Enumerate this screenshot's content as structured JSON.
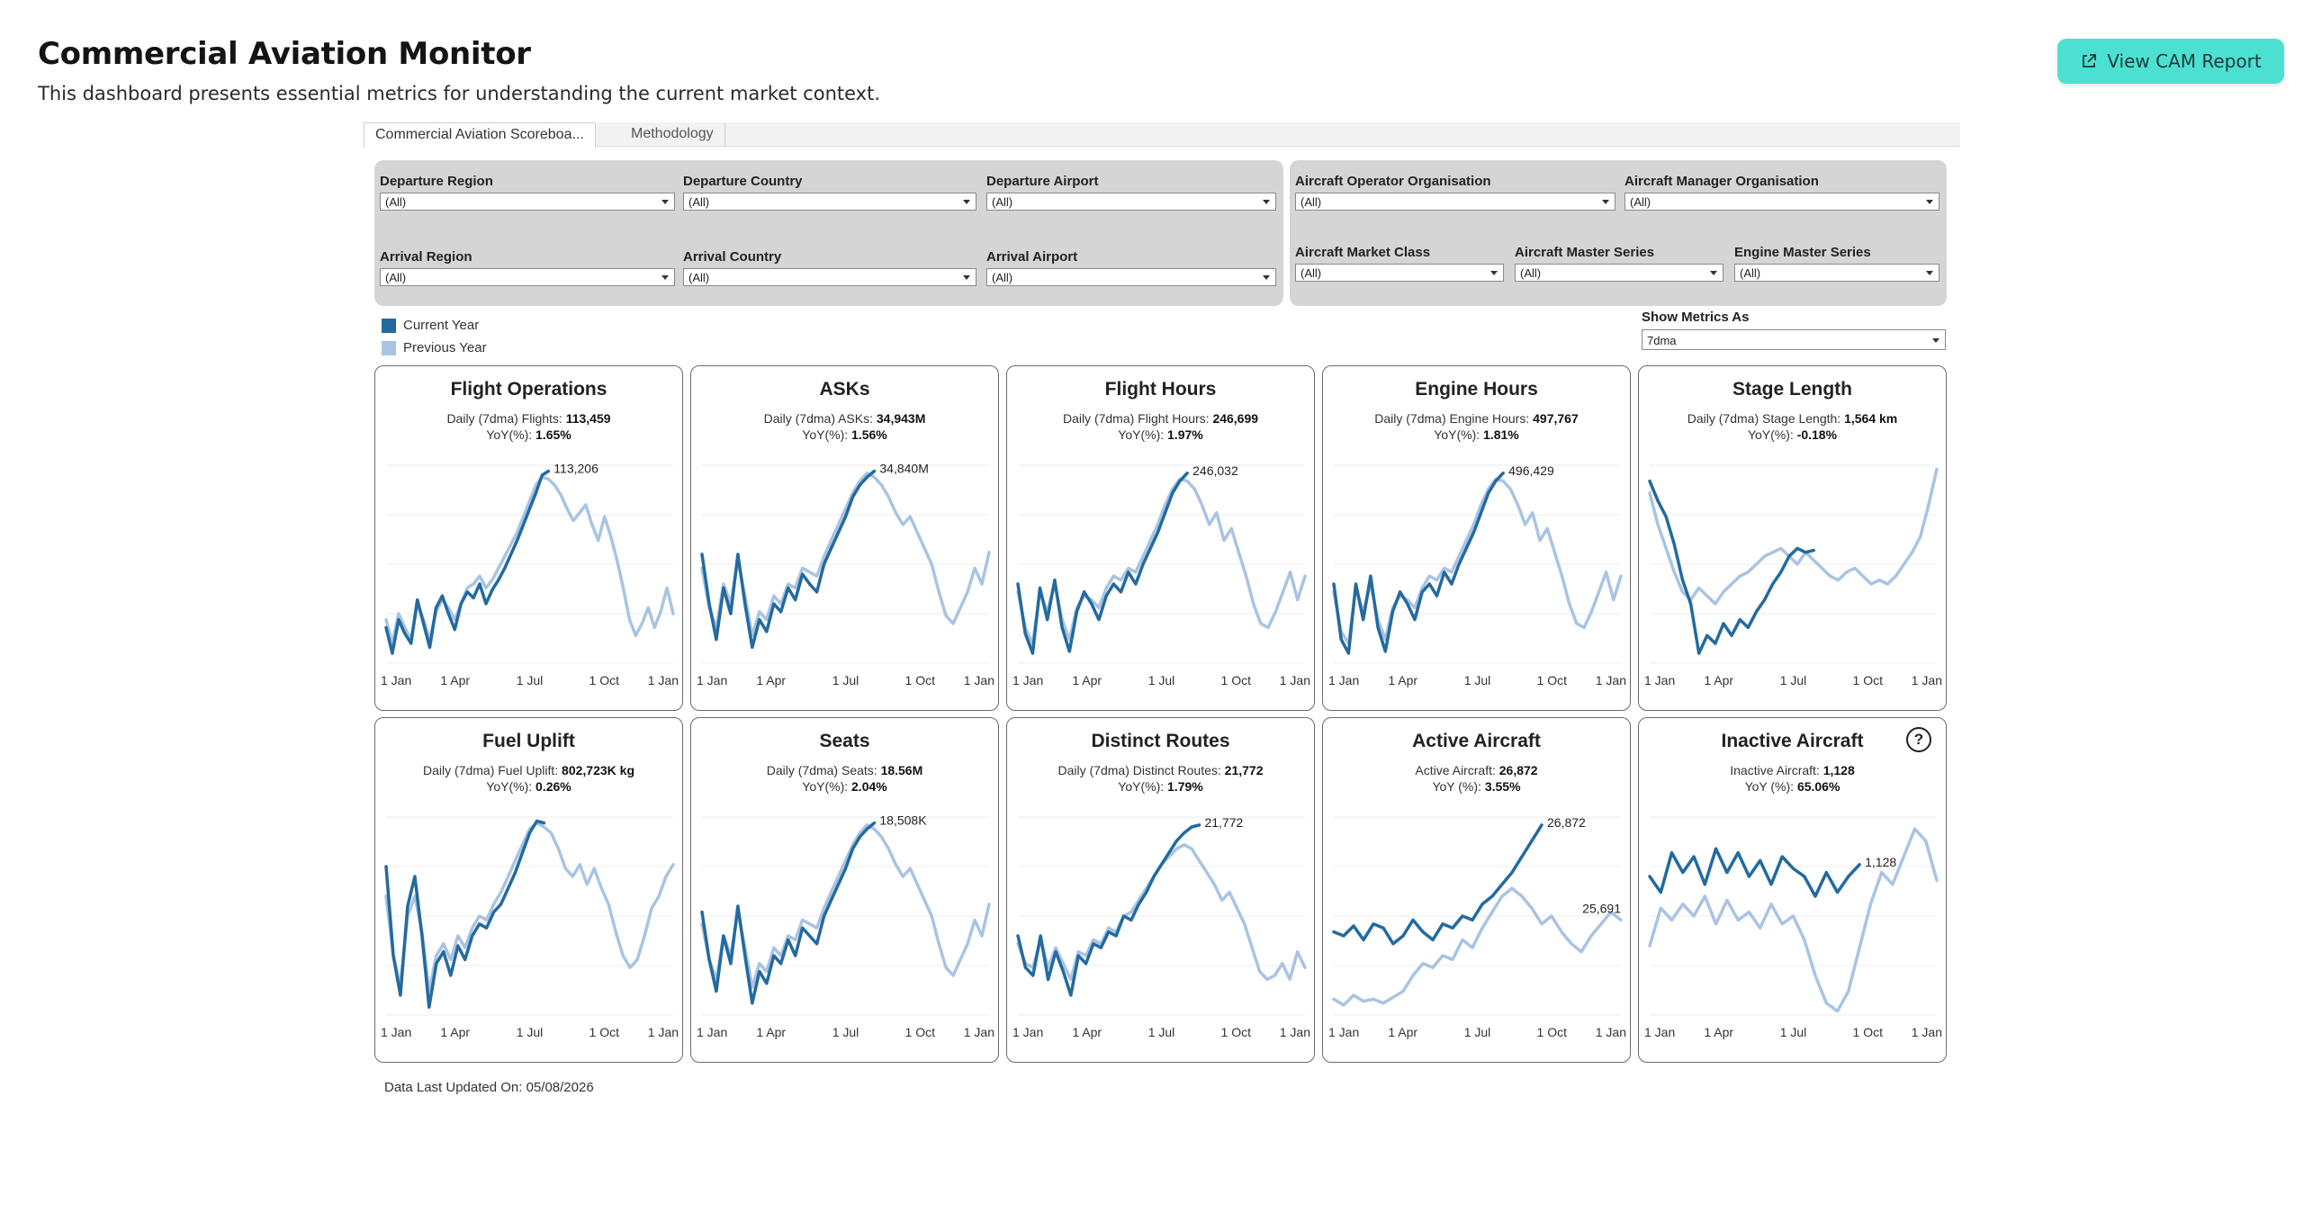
{
  "header": {
    "title": "Commercial Aviation Monitor",
    "subtitle": "This dashboard presents essential metrics for understanding the current market context.",
    "report_button": "View CAM Report"
  },
  "tabs": [
    {
      "label": "Commercial Aviation Scoreboa..."
    },
    {
      "label": "Methodology"
    }
  ],
  "filters": {
    "departure_region": {
      "label": "Departure Region",
      "value": "(All)"
    },
    "departure_country": {
      "label": "Departure Country",
      "value": "(All)"
    },
    "departure_airport": {
      "label": "Departure Airport",
      "value": "(All)"
    },
    "arrival_region": {
      "label": "Arrival Region",
      "value": "(All)"
    },
    "arrival_country": {
      "label": "Arrival Country",
      "value": "(All)"
    },
    "arrival_airport": {
      "label": "Arrival Airport",
      "value": "(All)"
    },
    "operator_org": {
      "label": "Aircraft Operator Organisation",
      "value": "(All)"
    },
    "manager_org": {
      "label": "Aircraft Manager Organisation",
      "value": "(All)"
    },
    "market_class": {
      "label": "Aircraft Market Class",
      "value": "(All)"
    },
    "master_series": {
      "label": "Aircraft Master Series",
      "value": "(All)"
    },
    "engine_series": {
      "label": "Engine Master Series",
      "value": "(All)"
    }
  },
  "legend": {
    "current": "Current Year",
    "previous": "Previous Year",
    "colors": {
      "current": "#236a9f",
      "previous": "#a9c4e2"
    }
  },
  "show_metrics": {
    "label": "Show Metrics As",
    "value": "7dma"
  },
  "cards": [
    {
      "title": "Flight Operations",
      "line1_prefix": "Daily (7dma) Flights: ",
      "line1_value": "113,459",
      "line2_prefix": "YoY(%): ",
      "line2_value": "1.65%",
      "end_label": "113,206",
      "prev_label": "",
      "current": [
        0.18,
        0.05,
        0.22,
        0.15,
        0.1,
        0.32,
        0.2,
        0.08,
        0.28,
        0.34,
        0.25,
        0.17,
        0.3,
        0.36,
        0.33,
        0.4,
        0.3,
        0.37,
        0.42,
        0.48,
        0.55,
        0.62,
        0.7,
        0.78,
        0.86,
        0.95,
        0.97
      ],
      "previous": [
        0.22,
        0.1,
        0.25,
        0.18,
        0.12,
        0.3,
        0.22,
        0.12,
        0.26,
        0.32,
        0.28,
        0.22,
        0.3,
        0.38,
        0.4,
        0.44,
        0.38,
        0.42,
        0.48,
        0.54,
        0.6,
        0.66,
        0.74,
        0.82,
        0.9,
        0.94,
        0.93,
        0.9,
        0.85,
        0.78,
        0.72,
        0.76,
        0.8,
        0.7,
        0.62,
        0.74,
        0.64,
        0.52,
        0.38,
        0.22,
        0.14,
        0.2,
        0.28,
        0.18,
        0.26,
        0.38,
        0.25
      ],
      "x_ticks": [
        "1 Jan",
        "1 Apr",
        "1 Jul",
        "1 Oct",
        "1 Jan"
      ]
    },
    {
      "title": "ASKs",
      "line1_prefix": "Daily (7dma) ASKs: ",
      "line1_value": "34,943M",
      "line2_prefix": "YoY(%): ",
      "line2_value": "1.56%",
      "end_label": "34,840M",
      "prev_label": "",
      "current": [
        0.55,
        0.3,
        0.12,
        0.38,
        0.25,
        0.55,
        0.3,
        0.08,
        0.22,
        0.16,
        0.3,
        0.26,
        0.38,
        0.32,
        0.45,
        0.4,
        0.36,
        0.5,
        0.58,
        0.66,
        0.74,
        0.84,
        0.9,
        0.94,
        0.97
      ],
      "previous": [
        0.48,
        0.28,
        0.18,
        0.4,
        0.3,
        0.52,
        0.34,
        0.14,
        0.26,
        0.22,
        0.34,
        0.3,
        0.4,
        0.38,
        0.48,
        0.46,
        0.44,
        0.54,
        0.62,
        0.7,
        0.78,
        0.86,
        0.92,
        0.96,
        0.94,
        0.9,
        0.84,
        0.76,
        0.7,
        0.74,
        0.66,
        0.58,
        0.5,
        0.36,
        0.24,
        0.2,
        0.28,
        0.36,
        0.48,
        0.4,
        0.56
      ],
      "x_ticks": [
        "1 Jan",
        "1 Apr",
        "1 Jul",
        "1 Oct",
        "1 Jan"
      ]
    },
    {
      "title": "Flight Hours",
      "line1_prefix": "Daily (7dma) Flight Hours: ",
      "line1_value": "246,699",
      "line2_prefix": "YoY(%): ",
      "line2_value": "1.97%",
      "end_label": "246,032",
      "prev_label": "",
      "current": [
        0.4,
        0.15,
        0.05,
        0.38,
        0.22,
        0.42,
        0.18,
        0.06,
        0.26,
        0.36,
        0.3,
        0.22,
        0.34,
        0.4,
        0.36,
        0.46,
        0.4,
        0.5,
        0.58,
        0.66,
        0.76,
        0.86,
        0.92,
        0.96
      ],
      "previous": [
        0.36,
        0.18,
        0.1,
        0.36,
        0.26,
        0.4,
        0.22,
        0.12,
        0.28,
        0.34,
        0.32,
        0.28,
        0.38,
        0.44,
        0.42,
        0.48,
        0.46,
        0.54,
        0.62,
        0.7,
        0.8,
        0.88,
        0.93,
        0.92,
        0.88,
        0.8,
        0.7,
        0.76,
        0.62,
        0.68,
        0.56,
        0.44,
        0.3,
        0.2,
        0.18,
        0.26,
        0.36,
        0.46,
        0.32,
        0.44
      ],
      "x_ticks": [
        "1 Jan",
        "1 Apr",
        "1 Jul",
        "1 Oct",
        "1 Jan"
      ]
    },
    {
      "title": "Engine Hours",
      "line1_prefix": "Daily (7dma) Engine Hours: ",
      "line1_value": "497,767",
      "line2_prefix": "YoY(%): ",
      "line2_value": "1.81%",
      "end_label": "496,429",
      "prev_label": "",
      "current": [
        0.4,
        0.12,
        0.05,
        0.4,
        0.22,
        0.44,
        0.18,
        0.06,
        0.26,
        0.36,
        0.3,
        0.22,
        0.36,
        0.4,
        0.34,
        0.46,
        0.4,
        0.5,
        0.58,
        0.66,
        0.76,
        0.86,
        0.92,
        0.96
      ],
      "previous": [
        0.36,
        0.16,
        0.1,
        0.38,
        0.26,
        0.4,
        0.22,
        0.12,
        0.28,
        0.34,
        0.32,
        0.28,
        0.38,
        0.44,
        0.42,
        0.48,
        0.46,
        0.54,
        0.62,
        0.7,
        0.8,
        0.88,
        0.93,
        0.92,
        0.88,
        0.8,
        0.7,
        0.76,
        0.62,
        0.68,
        0.56,
        0.44,
        0.3,
        0.2,
        0.18,
        0.26,
        0.36,
        0.46,
        0.32,
        0.44
      ],
      "x_ticks": [
        "1 Jan",
        "1 Apr",
        "1 Jul",
        "1 Oct",
        "1 Jan"
      ]
    },
    {
      "title": "Stage Length",
      "line1_prefix": "Daily (7dma) Stage Length: ",
      "line1_value": "1,564 km",
      "line2_prefix": "YoY(%): ",
      "line2_value": "-0.18%",
      "end_label": "",
      "prev_label": "",
      "current": [
        0.92,
        0.82,
        0.74,
        0.6,
        0.42,
        0.3,
        0.05,
        0.14,
        0.1,
        0.2,
        0.14,
        0.22,
        0.18,
        0.26,
        0.32,
        0.4,
        0.46,
        0.54,
        0.58,
        0.56,
        0.57
      ],
      "previous": [
        0.86,
        0.7,
        0.58,
        0.46,
        0.36,
        0.32,
        0.38,
        0.34,
        0.3,
        0.36,
        0.4,
        0.44,
        0.46,
        0.5,
        0.54,
        0.56,
        0.58,
        0.54,
        0.5,
        0.56,
        0.52,
        0.48,
        0.44,
        0.42,
        0.46,
        0.48,
        0.44,
        0.4,
        0.42,
        0.4,
        0.44,
        0.5,
        0.56,
        0.64,
        0.8,
        0.98
      ],
      "x_ticks": [
        "1 Jan",
        "1 Apr",
        "1 Jul",
        "1 Oct",
        "1 Jan"
      ]
    },
    {
      "title": "Fuel Uplift",
      "line1_prefix": "Daily (7dma) Fuel Uplift: ",
      "line1_value": "802,723K kg",
      "line2_prefix": "YoY(%): ",
      "line2_value": "0.26%",
      "end_label": "",
      "prev_label": "",
      "current": [
        0.75,
        0.3,
        0.1,
        0.55,
        0.7,
        0.4,
        0.04,
        0.26,
        0.32,
        0.2,
        0.35,
        0.28,
        0.4,
        0.46,
        0.44,
        0.52,
        0.56,
        0.64,
        0.72,
        0.82,
        0.92,
        0.98,
        0.97
      ],
      "previous": [
        0.6,
        0.3,
        0.15,
        0.5,
        0.6,
        0.42,
        0.12,
        0.3,
        0.36,
        0.28,
        0.4,
        0.34,
        0.44,
        0.5,
        0.48,
        0.56,
        0.62,
        0.7,
        0.78,
        0.86,
        0.94,
        0.97,
        0.95,
        0.92,
        0.84,
        0.74,
        0.7,
        0.76,
        0.66,
        0.74,
        0.64,
        0.56,
        0.42,
        0.3,
        0.24,
        0.28,
        0.4,
        0.54,
        0.6,
        0.7,
        0.76
      ],
      "x_ticks": [
        "1 Jan",
        "1 Apr",
        "1 Jul",
        "1 Oct",
        "1 Jan"
      ]
    },
    {
      "title": "Seats",
      "line1_prefix": "Daily (7dma) Seats: ",
      "line1_value": "18.56M",
      "line2_prefix": "YoY(%): ",
      "line2_value": "2.04%",
      "end_label": "18,508K",
      "prev_label": "",
      "current": [
        0.52,
        0.28,
        0.12,
        0.4,
        0.26,
        0.55,
        0.3,
        0.06,
        0.22,
        0.16,
        0.3,
        0.26,
        0.38,
        0.3,
        0.44,
        0.4,
        0.36,
        0.5,
        0.58,
        0.66,
        0.74,
        0.84,
        0.9,
        0.94,
        0.97
      ],
      "previous": [
        0.46,
        0.28,
        0.18,
        0.4,
        0.3,
        0.52,
        0.34,
        0.14,
        0.26,
        0.22,
        0.34,
        0.3,
        0.4,
        0.38,
        0.48,
        0.46,
        0.44,
        0.54,
        0.62,
        0.7,
        0.78,
        0.86,
        0.92,
        0.96,
        0.94,
        0.9,
        0.84,
        0.76,
        0.7,
        0.74,
        0.66,
        0.58,
        0.5,
        0.36,
        0.24,
        0.2,
        0.28,
        0.36,
        0.48,
        0.4,
        0.56
      ],
      "x_ticks": [
        "1 Jan",
        "1 Apr",
        "1 Jul",
        "1 Oct",
        "1 Jan"
      ]
    },
    {
      "title": "Distinct Routes",
      "line1_prefix": "Daily (7dma) Distinct Routes: ",
      "line1_value": "21,772",
      "line2_prefix": "YoY(%): ",
      "line2_value": "1.79%",
      "end_label": "21,772",
      "prev_label": "",
      "current": [
        0.4,
        0.24,
        0.2,
        0.4,
        0.18,
        0.32,
        0.22,
        0.1,
        0.3,
        0.26,
        0.36,
        0.34,
        0.42,
        0.4,
        0.5,
        0.48,
        0.56,
        0.62,
        0.7,
        0.76,
        0.82,
        0.88,
        0.92,
        0.95,
        0.96
      ],
      "previous": [
        0.36,
        0.26,
        0.24,
        0.38,
        0.24,
        0.34,
        0.26,
        0.18,
        0.32,
        0.3,
        0.38,
        0.36,
        0.44,
        0.42,
        0.5,
        0.52,
        0.58,
        0.64,
        0.7,
        0.76,
        0.8,
        0.84,
        0.86,
        0.84,
        0.78,
        0.72,
        0.66,
        0.58,
        0.62,
        0.54,
        0.46,
        0.34,
        0.22,
        0.18,
        0.2,
        0.26,
        0.18,
        0.32,
        0.24
      ],
      "x_ticks": [
        "1 Jan",
        "1 Apr",
        "1 Jul",
        "1 Oct",
        "1 Jan"
      ]
    },
    {
      "title": "Active Aircraft",
      "line1_prefix": "Active Aircraft: ",
      "line1_value": "26,872",
      "line2_prefix": "YoY (%): ",
      "line2_value": "3.55%",
      "end_label": "26,872",
      "prev_label": "25,691",
      "current": [
        0.42,
        0.4,
        0.45,
        0.38,
        0.46,
        0.44,
        0.36,
        0.4,
        0.48,
        0.42,
        0.38,
        0.46,
        0.44,
        0.5,
        0.48,
        0.56,
        0.6,
        0.66,
        0.72,
        0.8,
        0.88,
        0.96
      ],
      "previous": [
        0.08,
        0.05,
        0.1,
        0.07,
        0.08,
        0.06,
        0.09,
        0.12,
        0.2,
        0.26,
        0.24,
        0.3,
        0.28,
        0.38,
        0.34,
        0.44,
        0.52,
        0.6,
        0.64,
        0.6,
        0.54,
        0.46,
        0.5,
        0.42,
        0.36,
        0.32,
        0.4,
        0.46,
        0.52,
        0.48
      ],
      "x_ticks": [
        "1 Jan",
        "1 Apr",
        "1 Jul",
        "1 Oct",
        "1 Jan"
      ]
    },
    {
      "title": "Inactive Aircraft",
      "line1_prefix": "Inactive Aircraft: ",
      "line1_value": "1,128",
      "line2_prefix": "YoY (%): ",
      "line2_value": "65.06%",
      "end_label": "1,128",
      "prev_label": "",
      "current": [
        0.7,
        0.62,
        0.82,
        0.72,
        0.8,
        0.66,
        0.84,
        0.72,
        0.82,
        0.7,
        0.78,
        0.66,
        0.8,
        0.74,
        0.7,
        0.6,
        0.72,
        0.62,
        0.7,
        0.76
      ],
      "previous": [
        0.35,
        0.54,
        0.48,
        0.56,
        0.5,
        0.6,
        0.46,
        0.58,
        0.48,
        0.52,
        0.44,
        0.56,
        0.46,
        0.5,
        0.38,
        0.2,
        0.06,
        0.02,
        0.12,
        0.34,
        0.56,
        0.72,
        0.66,
        0.8,
        0.94,
        0.88,
        0.68
      ],
      "x_ticks": [
        "1 Jan",
        "1 Apr",
        "1 Jul",
        "1 Oct",
        "1 Jan"
      ]
    }
  ],
  "footer": {
    "updated": "Data Last Updated On: 05/08/2026"
  }
}
